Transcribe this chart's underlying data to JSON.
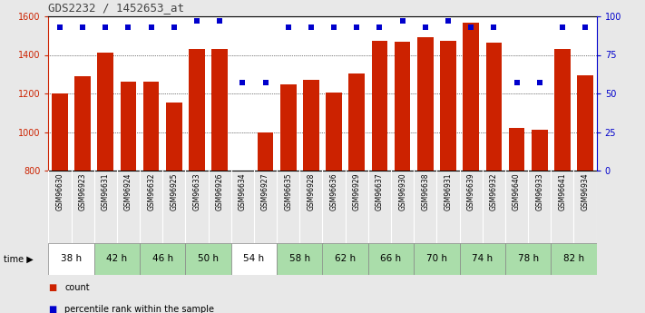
{
  "title": "GDS2232 / 1452653_at",
  "samples": [
    "GSM96630",
    "GSM96923",
    "GSM96631",
    "GSM96924",
    "GSM96632",
    "GSM96925",
    "GSM96633",
    "GSM96926",
    "GSM96634",
    "GSM96927",
    "GSM96635",
    "GSM96928",
    "GSM96636",
    "GSM96929",
    "GSM96637",
    "GSM96930",
    "GSM96638",
    "GSM96931",
    "GSM96639",
    "GSM96932",
    "GSM96640",
    "GSM96933",
    "GSM96641",
    "GSM96934"
  ],
  "counts": [
    1200,
    1290,
    1410,
    1260,
    1260,
    1155,
    1430,
    1430,
    800,
    1000,
    1245,
    1270,
    1205,
    1305,
    1475,
    1470,
    1490,
    1475,
    1565,
    1465,
    1020,
    1010,
    1430,
    1295
  ],
  "percentile_vals": [
    93,
    93,
    93,
    93,
    93,
    93,
    97,
    97,
    57,
    57,
    93,
    93,
    93,
    93,
    93,
    97,
    93,
    97,
    93,
    93,
    57,
    57,
    93,
    93
  ],
  "time_groups": [
    {
      "label": "38 h",
      "indices": [
        0,
        1
      ],
      "color": "#ffffff"
    },
    {
      "label": "42 h",
      "indices": [
        2,
        3
      ],
      "color": "#aaddaa"
    },
    {
      "label": "46 h",
      "indices": [
        4,
        5
      ],
      "color": "#aaddaa"
    },
    {
      "label": "50 h",
      "indices": [
        6,
        7
      ],
      "color": "#aaddaa"
    },
    {
      "label": "54 h",
      "indices": [
        8,
        9
      ],
      "color": "#ffffff"
    },
    {
      "label": "58 h",
      "indices": [
        10,
        11
      ],
      "color": "#aaddaa"
    },
    {
      "label": "62 h",
      "indices": [
        12,
        13
      ],
      "color": "#aaddaa"
    },
    {
      "label": "66 h",
      "indices": [
        14,
        15
      ],
      "color": "#aaddaa"
    },
    {
      "label": "70 h",
      "indices": [
        16,
        17
      ],
      "color": "#aaddaa"
    },
    {
      "label": "74 h",
      "indices": [
        18,
        19
      ],
      "color": "#aaddaa"
    },
    {
      "label": "78 h",
      "indices": [
        20,
        21
      ],
      "color": "#aaddaa"
    },
    {
      "label": "82 h",
      "indices": [
        22,
        23
      ],
      "color": "#aaddaa"
    }
  ],
  "ylim_left": [
    800,
    1600
  ],
  "ylim_right": [
    0,
    100
  ],
  "bar_color": "#cc2200",
  "dot_color": "#0000cc",
  "background_color": "#e8e8e8",
  "plot_bg_color": "#ffffff",
  "label_bg_color": "#cccccc",
  "yticks_left": [
    800,
    1000,
    1200,
    1400,
    1600
  ],
  "yticks_right": [
    0,
    25,
    50,
    75,
    100
  ],
  "left_axis_color": "#cc2200",
  "right_axis_color": "#0000cc"
}
